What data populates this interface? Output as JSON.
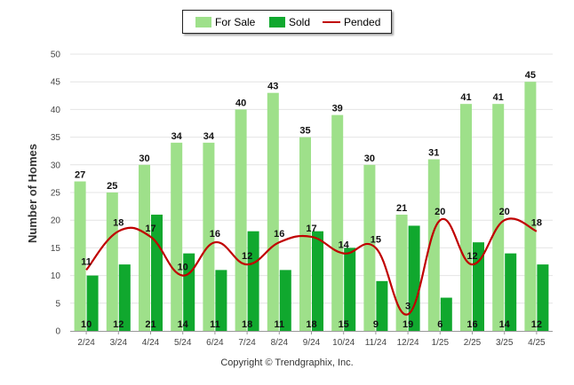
{
  "chart_data": {
    "type": "bar",
    "categories": [
      "2/24",
      "3/24",
      "4/24",
      "5/24",
      "6/24",
      "7/24",
      "8/24",
      "9/24",
      "10/24",
      "11/24",
      "12/24",
      "1/25",
      "2/25",
      "3/25",
      "4/25"
    ],
    "series": [
      {
        "name": "For Sale",
        "type": "bar",
        "color": "#9ee08a",
        "values": [
          27,
          25,
          30,
          34,
          34,
          40,
          43,
          35,
          39,
          30,
          21,
          31,
          41,
          41,
          45
        ]
      },
      {
        "name": "Sold",
        "type": "bar",
        "color": "#10a82e",
        "values": [
          10,
          12,
          21,
          14,
          11,
          18,
          11,
          18,
          15,
          9,
          19,
          6,
          16,
          14,
          12
        ]
      },
      {
        "name": "Pended",
        "type": "line",
        "color": "#c00000",
        "values": [
          11,
          18,
          17,
          10,
          16,
          12,
          16,
          17,
          14,
          15,
          3,
          20,
          12,
          20,
          18
        ]
      }
    ],
    "title": "",
    "xlabel": "",
    "ylabel": "Number of Homes",
    "ylim": [
      0,
      50
    ],
    "yticks": [
      0,
      5,
      10,
      15,
      20,
      25,
      30,
      35,
      40,
      45,
      50
    ],
    "grid": true,
    "legend_position": "top-center"
  },
  "legend": {
    "for_sale": "For Sale",
    "sold": "Sold",
    "pended": "Pended"
  },
  "footer": "Copyright © Trendgraphix, Inc."
}
